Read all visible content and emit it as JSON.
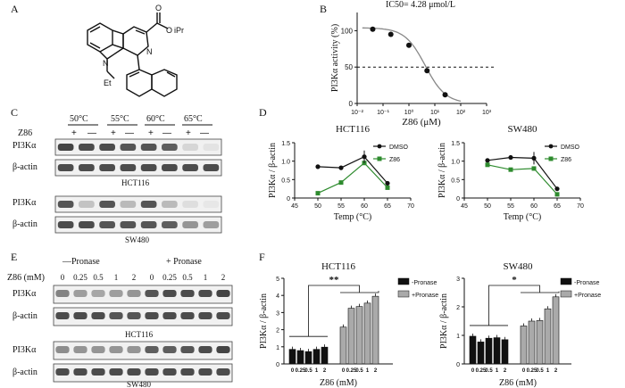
{
  "panels": {
    "A": {
      "label": "A",
      "ester_label": "O",
      "ester_group": "iPr",
      "ring_n_upper": "N",
      "ring_n_lower": "N",
      "n_sub": "Et"
    },
    "B": {
      "label": "B"
    },
    "C": {
      "label": "C",
      "temps": [
        "50°C",
        "55°C",
        "60°C",
        "65°C"
      ],
      "treat_label": "Z86",
      "signs": [
        "+",
        "—",
        "+",
        "—",
        "+",
        "—",
        "+",
        "—"
      ],
      "row_top": "PI3Kα",
      "row_bottom": "β-actin",
      "cell_1": "HCT116",
      "cell_2": "SW480"
    },
    "D": {
      "label": "D"
    },
    "E": {
      "label": "E",
      "group_minus": "—Pronase",
      "group_plus": "+ Pronase",
      "dose_label": "Z86 (mM)",
      "doses": [
        "0",
        "0.25",
        "0.5",
        "1",
        "2",
        "0",
        "0.25",
        "0.5",
        "1",
        "2"
      ],
      "row_top": "PI3Kα",
      "row_bottom": "β-actin",
      "cell_1": "HCT116",
      "cell_2": "SW480"
    },
    "F": {
      "label": "F"
    }
  },
  "chart_data": [
    {
      "type": "scatter",
      "panel": "B",
      "annotation": "IC50= 4.28 μmol/L",
      "xlabel": "Z86 (μM)",
      "ylabel": "PI3Kα activity (%)",
      "x_scale": "log",
      "xlim": [
        0.01,
        1000
      ],
      "ylim": [
        0,
        125
      ],
      "x_tick_labels": [
        "10⁻²",
        "10⁻¹",
        "10⁰",
        "10¹",
        "10²",
        "10³"
      ],
      "y_ticks": [
        0,
        50,
        100
      ],
      "x": [
        0.04,
        0.2,
        1.0,
        5.0,
        25.0
      ],
      "values": [
        102,
        95,
        80,
        45,
        12
      ],
      "reference_line": 50
    },
    {
      "type": "line",
      "panel": "D-left",
      "title": "HCT116",
      "xlabel": "Temp (°C)",
      "ylabel": "PI3Kα / β-actin",
      "xlim": [
        45,
        70
      ],
      "ylim": [
        0,
        1.5
      ],
      "x_ticks": [
        45,
        50,
        55,
        60,
        65,
        70
      ],
      "y_ticks": [
        0,
        0.5,
        1.0,
        1.5
      ],
      "x": [
        50,
        55,
        60,
        65
      ],
      "series": [
        {
          "name": "DMSO",
          "color": "#111111",
          "values": [
            0.85,
            0.82,
            1.12,
            0.4
          ]
        },
        {
          "name": "Z86",
          "color": "#2e8b2e",
          "values": [
            0.13,
            0.42,
            0.95,
            0.28
          ]
        }
      ]
    },
    {
      "type": "line",
      "panel": "D-right",
      "title": "SW480",
      "xlabel": "Temp (°C)",
      "ylabel": "PI3Kα / β-actin",
      "xlim": [
        45,
        70
      ],
      "ylim": [
        0,
        1.5
      ],
      "x_ticks": [
        45,
        50,
        55,
        60,
        65,
        70
      ],
      "y_ticks": [
        0,
        0.5,
        1.0,
        1.5
      ],
      "x": [
        50,
        55,
        60,
        65
      ],
      "series": [
        {
          "name": "DMSO",
          "color": "#111111",
          "values": [
            1.02,
            1.1,
            1.08,
            0.25
          ]
        },
        {
          "name": "Z86",
          "color": "#2e8b2e",
          "values": [
            0.9,
            0.77,
            0.8,
            0.1
          ]
        }
      ]
    },
    {
      "type": "bar",
      "panel": "F-left",
      "title": "HCT116",
      "xlabel": "Z86 (mM)",
      "ylabel": "PI3Kα / β-actin",
      "ylim": [
        0,
        5
      ],
      "y_ticks": [
        0,
        1,
        2,
        3,
        4,
        5
      ],
      "categories": [
        "0",
        "0.25",
        "0.5",
        "1",
        "2"
      ],
      "significance": "**",
      "series": [
        {
          "name": "-Pronase",
          "color": "#111111",
          "values": [
            0.85,
            0.78,
            0.72,
            0.85,
            0.98
          ]
        },
        {
          "name": "+Pronase",
          "color": "#aaaaaa",
          "values": [
            2.15,
            3.25,
            3.35,
            3.55,
            3.95
          ]
        }
      ]
    },
    {
      "type": "bar",
      "panel": "F-right",
      "title": "SW480",
      "xlabel": "Z86 (mM)",
      "ylabel": "PI3Kα / β-actin",
      "ylim": [
        0,
        3
      ],
      "y_ticks": [
        0,
        1,
        2,
        3
      ],
      "categories": [
        "0",
        "0.25",
        "0.5",
        "1",
        "2"
      ],
      "significance": "*",
      "series": [
        {
          "name": "-Pronase",
          "color": "#111111",
          "values": [
            0.97,
            0.77,
            0.9,
            0.92,
            0.85
          ]
        },
        {
          "name": "+Pronase",
          "color": "#aaaaaa",
          "values": [
            1.33,
            1.5,
            1.52,
            1.93,
            2.35
          ]
        }
      ]
    }
  ]
}
